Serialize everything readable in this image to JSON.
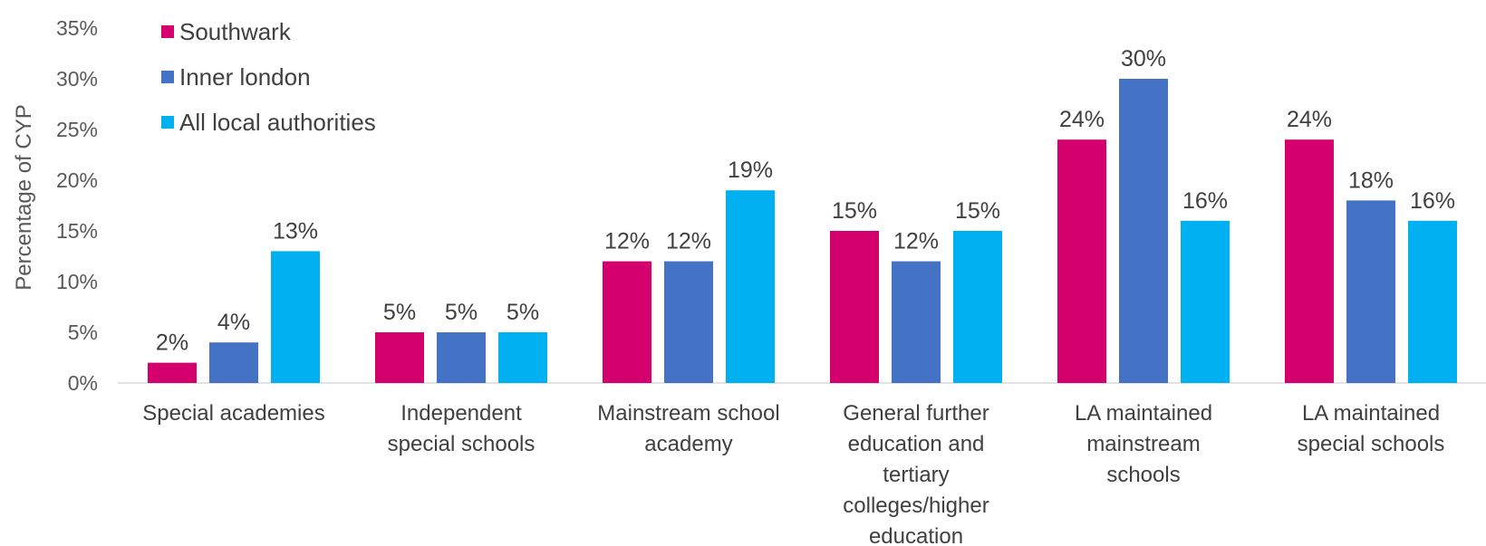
{
  "chart_data": {
    "type": "bar",
    "ylabel": "Percentage of CYP",
    "ylim": [
      0,
      35
    ],
    "yticks": [
      "0%",
      "5%",
      "10%",
      "15%",
      "20%",
      "25%",
      "30%",
      "35%"
    ],
    "legend_position": "top-left",
    "grid": false,
    "categories": [
      [
        "Special academies"
      ],
      [
        "Independent",
        "special schools"
      ],
      [
        "Mainstream school",
        "academy"
      ],
      [
        "General further",
        "education and",
        "tertiary",
        "colleges/higher",
        "education"
      ],
      [
        "LA maintained",
        "mainstream",
        "schools"
      ],
      [
        "LA maintained",
        "special schools"
      ]
    ],
    "series": [
      {
        "name": "Southwark",
        "color": "#D4006E",
        "values": [
          2,
          5,
          12,
          15,
          24,
          24
        ],
        "labels": [
          "2%",
          "5%",
          "12%",
          "15%",
          "24%",
          "24%"
        ]
      },
      {
        "name": "Inner london",
        "color": "#4472C4",
        "values": [
          4,
          5,
          12,
          12,
          30,
          18
        ],
        "labels": [
          "4%",
          "5%",
          "12%",
          "12%",
          "30%",
          "18%"
        ]
      },
      {
        "name": "All local authorities",
        "color": "#00B0F0",
        "values": [
          13,
          5,
          19,
          15,
          16,
          16
        ],
        "labels": [
          "13%",
          "5%",
          "19%",
          "15%",
          "16%",
          "16%"
        ]
      }
    ]
  }
}
